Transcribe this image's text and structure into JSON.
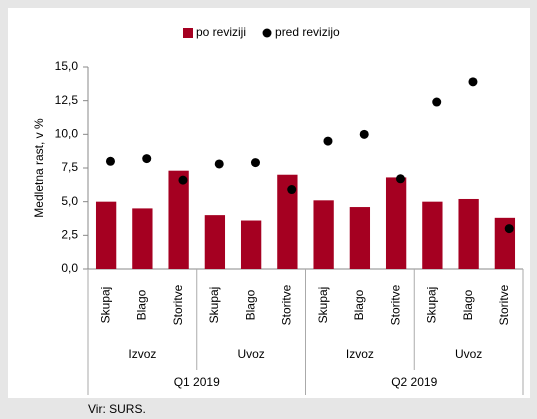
{
  "chart_data": {
    "type": "bar",
    "legend": "top",
    "y_label": "Medletna rast, v %",
    "categories": [
      "Skupaj",
      "Blago",
      "Storitve",
      "Skupaj",
      "Blago",
      "Storitve",
      "Skupaj",
      "Blago",
      "Storitve",
      "Skupaj",
      "Blago",
      "Storitve"
    ],
    "groups": [
      "Izvoz",
      "Uvoz",
      "Izvoz",
      "Uvoz"
    ],
    "periods": [
      "Q1 2019",
      "Q2 2019"
    ],
    "series": [
      {
        "name": "po reviziji",
        "type": "bar",
        "color": "#a50021",
        "values": [
          5.0,
          4.5,
          7.3,
          4.0,
          3.6,
          7.0,
          5.1,
          4.6,
          6.8,
          5.0,
          5.2,
          3.8
        ]
      },
      {
        "name": "pred revizijo",
        "type": "scatter",
        "color": "#000000",
        "values": [
          8.0,
          8.2,
          6.6,
          7.8,
          7.9,
          5.9,
          9.5,
          10.0,
          6.7,
          12.4,
          13.9,
          3.0
        ]
      }
    ],
    "ylim": [
      0,
      15
    ],
    "yticks": [
      {
        "value": 0,
        "label": "0,0"
      },
      {
        "value": 2.5,
        "label": "2,5"
      },
      {
        "value": 5,
        "label": "5,0"
      },
      {
        "value": 7.5,
        "label": "7,5"
      },
      {
        "value": 10,
        "label": "10,0"
      },
      {
        "value": 12.5,
        "label": "12,5"
      },
      {
        "value": 15,
        "label": "15,0"
      }
    ],
    "grid": false,
    "source": "Vir: SURS."
  }
}
